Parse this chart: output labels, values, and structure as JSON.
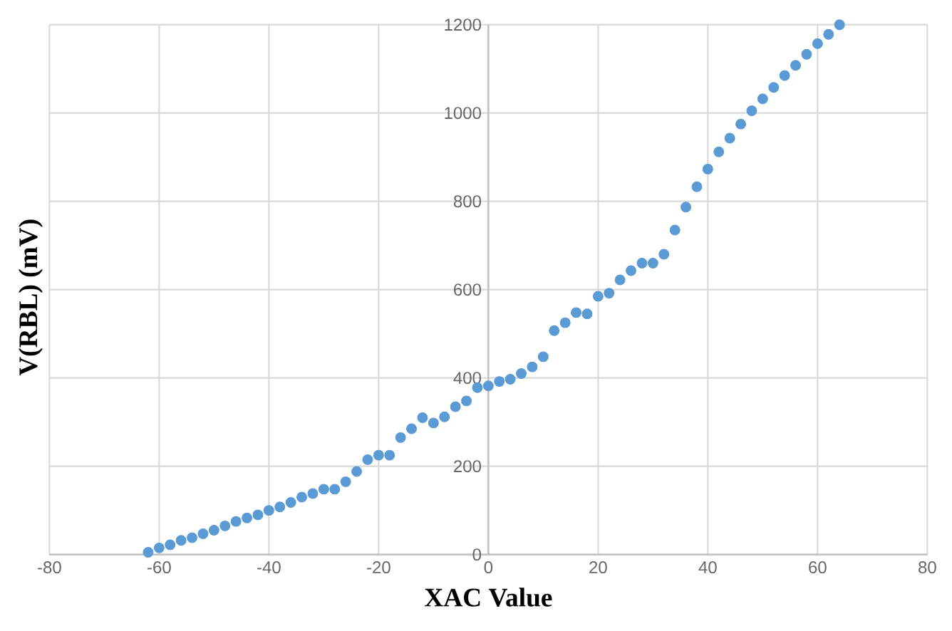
{
  "chart_data": {
    "type": "scatter",
    "xlabel": "XAC Value",
    "ylabel": "V(RBL) (mV)",
    "x": [
      -62,
      -60,
      -58,
      -56,
      -54,
      -52,
      -50,
      -48,
      -46,
      -44,
      -42,
      -40,
      -38,
      -36,
      -34,
      -32,
      -30,
      -28,
      -26,
      -24,
      -22,
      -20,
      -18,
      -16,
      -14,
      -12,
      -10,
      -8,
      -6,
      -4,
      -2,
      0,
      2,
      4,
      6,
      8,
      10,
      12,
      14,
      16,
      18,
      20,
      22,
      24,
      26,
      28,
      30,
      32,
      34,
      36,
      38,
      40,
      42,
      44,
      46,
      48,
      50,
      52,
      54,
      56,
      58,
      60,
      62,
      64
    ],
    "series": [
      {
        "color": "#5b9bd5",
        "values": [
          5,
          15,
          22,
          32,
          38,
          47,
          55,
          65,
          75,
          83,
          90,
          100,
          108,
          118,
          130,
          138,
          148,
          148,
          165,
          188,
          215,
          225,
          225,
          265,
          285,
          310,
          298,
          312,
          335,
          348,
          378,
          382,
          392,
          397,
          410,
          425,
          448,
          507,
          525,
          548,
          545,
          585,
          592,
          622,
          643,
          660,
          660,
          680,
          735,
          787,
          833,
          873,
          912,
          943,
          975,
          1005,
          1032,
          1058,
          1085,
          1108,
          1133,
          1157,
          1178,
          1200
        ]
      }
    ],
    "xlim": [
      -80,
      80
    ],
    "xticks": [
      -80,
      -60,
      -40,
      -20,
      0,
      20,
      40,
      60,
      80
    ],
    "ylim": [
      0,
      1200
    ],
    "yticks": [
      0,
      200,
      400,
      600,
      800,
      1000,
      1200
    ],
    "grid": true,
    "marker": "circle"
  }
}
